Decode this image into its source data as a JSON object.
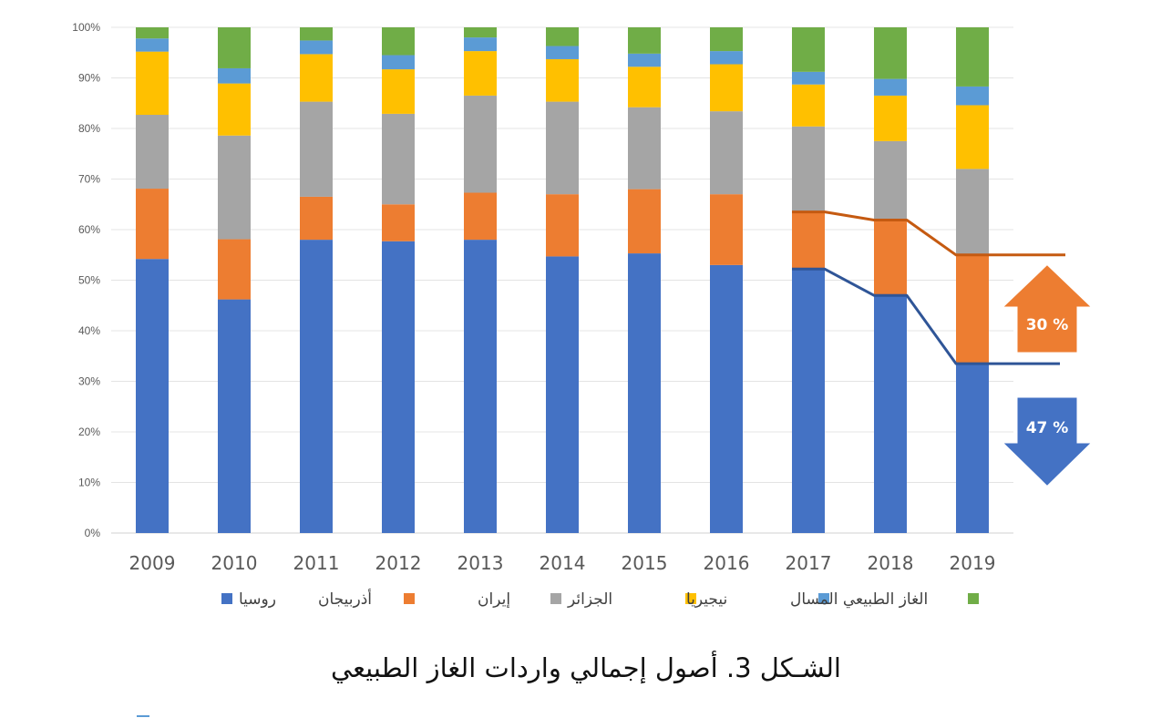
{
  "chart_data": {
    "type": "bar",
    "stacked": true,
    "percent_stacked": true,
    "categories": [
      "2009",
      "2010",
      "2011",
      "2012",
      "2013",
      "2014",
      "2015",
      "2016",
      "2017",
      "2018",
      "2019"
    ],
    "series": [
      {
        "name": "روسيا",
        "color": "#4472c4",
        "values": [
          54.2,
          46.2,
          58.0,
          57.7,
          58.0,
          54.7,
          55.3,
          53.0,
          52.2,
          47.0,
          33.5
        ]
      },
      {
        "name": "أذربيجان",
        "color": "#ed7d31",
        "values": [
          13.9,
          11.9,
          8.5,
          7.3,
          9.3,
          12.3,
          12.7,
          14.0,
          11.3,
          14.9,
          21.5
        ]
      },
      {
        "name": "إيران",
        "color": "#a5a5a5",
        "values": [
          14.6,
          20.5,
          18.8,
          17.9,
          19.2,
          18.3,
          16.2,
          16.4,
          16.9,
          15.6,
          17.0
        ]
      },
      {
        "name": "الجزائر",
        "color": "#ffc000",
        "values": [
          12.5,
          10.3,
          9.4,
          8.8,
          8.8,
          8.4,
          8.0,
          9.3,
          8.3,
          9.0,
          12.6
        ]
      },
      {
        "name": "نيجيريا",
        "color": "#5b9bd5",
        "values": [
          2.6,
          3.0,
          2.7,
          2.8,
          2.7,
          2.6,
          2.6,
          2.6,
          2.5,
          3.3,
          3.7
        ]
      },
      {
        "name": "الغاز الطبيعي المسال",
        "color": "#70ad47",
        "values": [
          2.2,
          8.1,
          2.6,
          5.5,
          2.0,
          3.7,
          5.2,
          4.7,
          8.8,
          10.2,
          11.7
        ]
      }
    ],
    "ylim": [
      0,
      100
    ],
    "yticks": [
      "0%",
      "10%",
      "20%",
      "30%",
      "40%",
      "50%",
      "60%",
      "70%",
      "80%",
      "90%",
      "100%"
    ],
    "grid": true,
    "legend_position": "bottom",
    "trend_lines": [
      {
        "color": "#c55a11",
        "points": [
          [
            2017,
            63.5
          ],
          [
            2018,
            61.9
          ],
          [
            2019,
            55.0
          ]
        ]
      },
      {
        "color": "#2f5597",
        "points": [
          [
            2017,
            52.2
          ],
          [
            2018,
            47.0
          ],
          [
            2019,
            33.5
          ]
        ]
      }
    ],
    "annotations": [
      {
        "text": "30 %",
        "direction": "up",
        "color": "#ed7d31"
      },
      {
        "text": "47 %",
        "direction": "down",
        "color": "#4472c4"
      }
    ]
  },
  "caption": "الشـكل 3. أصول إجمالي واردات الغاز الطبيعي"
}
